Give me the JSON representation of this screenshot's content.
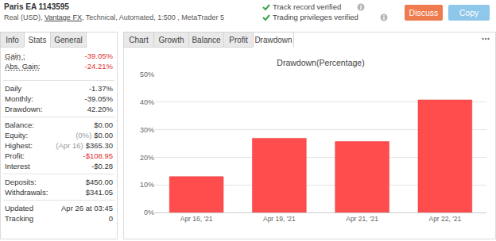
{
  "header": {
    "title": "Paris EA 1143595",
    "subtitle": {
      "before": "Real (USD), ",
      "link": "Vantage FX",
      "after": ", Technical, Automated, 1:500 , MetaTrader 5"
    },
    "verified": [
      "Track record verified",
      "Trading privileges verified"
    ],
    "buttons": [
      "Discuss",
      "Copy"
    ]
  },
  "left_tabs": {
    "items": [
      "Info",
      "Stats",
      "General"
    ],
    "active": "Stats"
  },
  "stats": [
    [
      {
        "label": "Gain :",
        "value": "-39.05%",
        "color": "#e0302e"
      },
      {
        "label": "Abs. Gain:",
        "value": "-24.21%",
        "color": "#e0302e"
      }
    ],
    [
      {
        "label": "Daily",
        "value": "-1.37%"
      },
      {
        "label": "Monthly:",
        "value": "-39.05%"
      },
      {
        "label": "Drawdown:",
        "value": "42.20%"
      }
    ],
    [
      {
        "label": "Balance:",
        "value": "$0.00"
      },
      {
        "label": "Equity:",
        "note": "(0%)",
        "value": "$0.00"
      },
      {
        "label": "Highest:",
        "note": "(Apr 16)",
        "value": "$365.30"
      },
      {
        "label": "Profit:",
        "value": "-$108.95",
        "color": "#e0302e"
      },
      {
        "label": "Interest",
        "value": "-$0.28"
      }
    ],
    [
      {
        "label": "Deposits:",
        "value": "$450.00"
      },
      {
        "label": "Withdrawals:",
        "value": "$341.05"
      }
    ],
    [
      {
        "label": "Updated",
        "value": "Apr 26 at 03:45"
      },
      {
        "label": "Tracking",
        "value": "0"
      }
    ]
  ],
  "chart_tabs": {
    "items": [
      "Chart",
      "Growth",
      "Balance",
      "Profit",
      "Drawdown"
    ],
    "active": "Drawdown"
  },
  "chart_data": {
    "type": "bar",
    "title": "Drawdown(Percentage)",
    "categories": [
      "Apr 16, '21",
      "Apr 19, '21",
      "Apr 21, '21",
      "Apr 22, '21"
    ],
    "values": [
      13,
      26.9,
      25.7,
      40.8
    ],
    "color": "#ff4d4d",
    "ylim": [
      0,
      50
    ],
    "yticks": [
      {
        "value": 0,
        "label": "0%"
      },
      {
        "value": 10,
        "label": "10%"
      },
      {
        "value": 20,
        "label": "20%"
      },
      {
        "value": 30,
        "label": "30%"
      },
      {
        "value": 40,
        "label": "40%"
      },
      {
        "value": 50,
        "label": "50%"
      }
    ],
    "grid": true
  }
}
